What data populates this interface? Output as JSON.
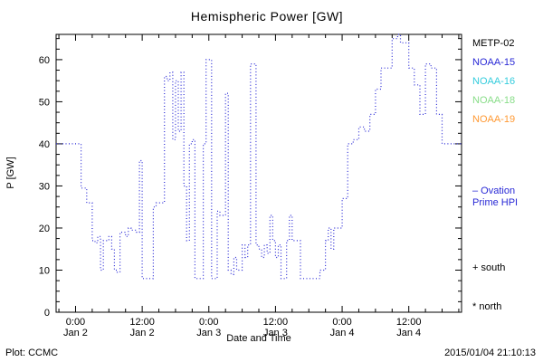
{
  "title": "Hemispheric Power [GW]",
  "axes": {
    "ylabel": "P [GW]",
    "xlabel": "Date and Time",
    "yticks": [
      "0",
      "10",
      "20",
      "30",
      "40",
      "50",
      "60"
    ],
    "xticks": [
      {
        "time": "0:00",
        "date": "Jan 2"
      },
      {
        "time": "12:00",
        "date": "Jan 2"
      },
      {
        "time": "0:00",
        "date": "Jan 3"
      },
      {
        "time": "12:00",
        "date": "Jan 3"
      },
      {
        "time": "0:00",
        "date": "Jan 4"
      },
      {
        "time": "12:00",
        "date": "Jan 4"
      }
    ]
  },
  "legend": {
    "satellites": [
      {
        "label": "METP-02",
        "color": "#000000"
      },
      {
        "label": "NOAA-15",
        "color": "#2929d6"
      },
      {
        "label": "NOAA-16",
        "color": "#33ccdd"
      },
      {
        "label": "NOAA-18",
        "color": "#88dd88"
      },
      {
        "label": "NOAA-19",
        "color": "#ff9933"
      }
    ],
    "model": {
      "line1": "– Ovation",
      "line2": "Prime HPI",
      "color": "#2929d6"
    },
    "markers": [
      {
        "label": "+ south"
      },
      {
        "label": "* north"
      }
    ]
  },
  "footer": {
    "left": "Plot: CCMC",
    "right": "2015/01/04 21:10:13"
  },
  "chart_data": {
    "type": "line",
    "step": "after",
    "line_style": "dotted",
    "color": "#2929d6",
    "title": "Hemispheric Power [GW]",
    "xlabel": "Date and Time",
    "ylabel": "P [GW]",
    "x_unit": "hours since 2015-01-02 00:00",
    "xlim": [
      -3.5,
      69.5
    ],
    "ylim": [
      0,
      66
    ],
    "xtick_hours": [
      0,
      12,
      24,
      36,
      48,
      60
    ],
    "ytick_values": [
      0,
      10,
      20,
      30,
      40,
      50,
      60
    ],
    "grid": false,
    "legend_position": "right-outside",
    "series": [
      {
        "name": "Ovation Prime HPI (NOAA-15)",
        "points": [
          [
            -3.5,
            40
          ],
          [
            1,
            29.5
          ],
          [
            2,
            26
          ],
          [
            3,
            17
          ],
          [
            3.5,
            16.5
          ],
          [
            4,
            18
          ],
          [
            4.5,
            10
          ],
          [
            5,
            17
          ],
          [
            6,
            18
          ],
          [
            6.5,
            15
          ],
          [
            7,
            10
          ],
          [
            7.5,
            9.5
          ],
          [
            8,
            19
          ],
          [
            9,
            18
          ],
          [
            9.5,
            20
          ],
          [
            10,
            19.5
          ],
          [
            11,
            19
          ],
          [
            11.5,
            36
          ],
          [
            12,
            8
          ],
          [
            14,
            25
          ],
          [
            14.5,
            26
          ],
          [
            16,
            56
          ],
          [
            16.5,
            55
          ],
          [
            17,
            57
          ],
          [
            17.5,
            41
          ],
          [
            18,
            55
          ],
          [
            18.5,
            43
          ],
          [
            19,
            57
          ],
          [
            19.5,
            30
          ],
          [
            20,
            17
          ],
          [
            20.5,
            40
          ],
          [
            21,
            41
          ],
          [
            21.5,
            8
          ],
          [
            23,
            40
          ],
          [
            23.5,
            60
          ],
          [
            24.5,
            8
          ],
          [
            25.5,
            24
          ],
          [
            26,
            23
          ],
          [
            27,
            52
          ],
          [
            27.5,
            10
          ],
          [
            28,
            9
          ],
          [
            28.5,
            13
          ],
          [
            29,
            10
          ],
          [
            30,
            16
          ],
          [
            30.5,
            13
          ],
          [
            31,
            16
          ],
          [
            31.5,
            59
          ],
          [
            32.5,
            16
          ],
          [
            33,
            15
          ],
          [
            33.5,
            13
          ],
          [
            34,
            16
          ],
          [
            34.5,
            14
          ],
          [
            35,
            23
          ],
          [
            35.5,
            17
          ],
          [
            36,
            13
          ],
          [
            36.5,
            16
          ],
          [
            37,
            8
          ],
          [
            38,
            17
          ],
          [
            38.5,
            23
          ],
          [
            39,
            17
          ],
          [
            40.5,
            8
          ],
          [
            44,
            10
          ],
          [
            45,
            17
          ],
          [
            45.5,
            20
          ],
          [
            46,
            15
          ],
          [
            46.5,
            20
          ],
          [
            48,
            27
          ],
          [
            49,
            40
          ],
          [
            50,
            41
          ],
          [
            51,
            44
          ],
          [
            52,
            43
          ],
          [
            53,
            47
          ],
          [
            54,
            53
          ],
          [
            55,
            58
          ],
          [
            57,
            65
          ],
          [
            58,
            66
          ],
          [
            58.5,
            64
          ],
          [
            60,
            58
          ],
          [
            61,
            54
          ],
          [
            62,
            47
          ],
          [
            63,
            59
          ],
          [
            64,
            58
          ],
          [
            65,
            47
          ],
          [
            66,
            40
          ]
        ]
      }
    ]
  }
}
